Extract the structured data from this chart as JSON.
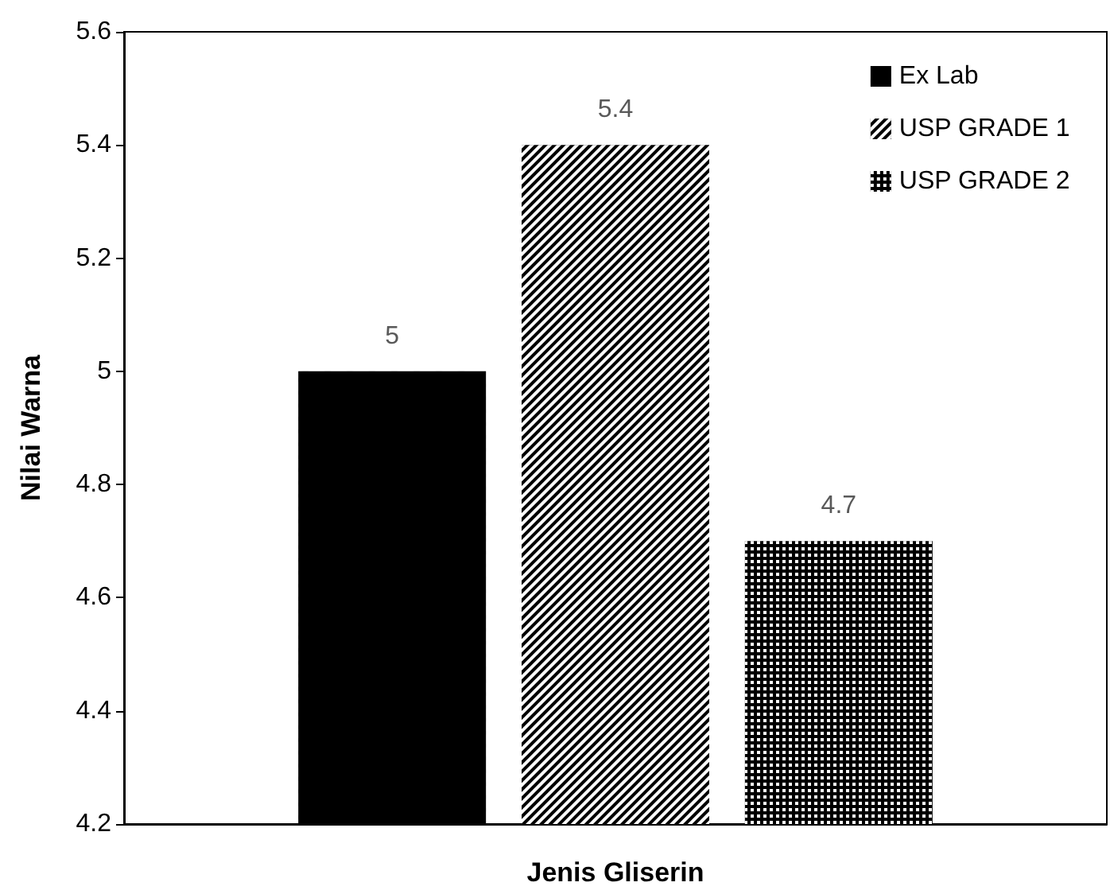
{
  "chart_data": {
    "type": "bar",
    "xlabel": "Jenis Gliserin",
    "ylabel": "Nilai Warna",
    "categories": [
      null
    ],
    "series": [
      {
        "name": "Ex Lab",
        "color": "#000000",
        "values": [
          5
        ]
      },
      {
        "name": "USP GRADE 1",
        "color": "#000000",
        "values": [
          5.4
        ]
      },
      {
        "name": "USP GRADE 2",
        "color": "#000000",
        "values": [
          4.7
        ]
      }
    ],
    "ylim": [
      4.2,
      5.6
    ],
    "yticks": [
      4.2,
      4.4,
      4.6,
      4.8,
      5,
      5.2,
      5.4,
      5.6
    ],
    "grid": false,
    "legend": "top right",
    "data_labels": true
  }
}
